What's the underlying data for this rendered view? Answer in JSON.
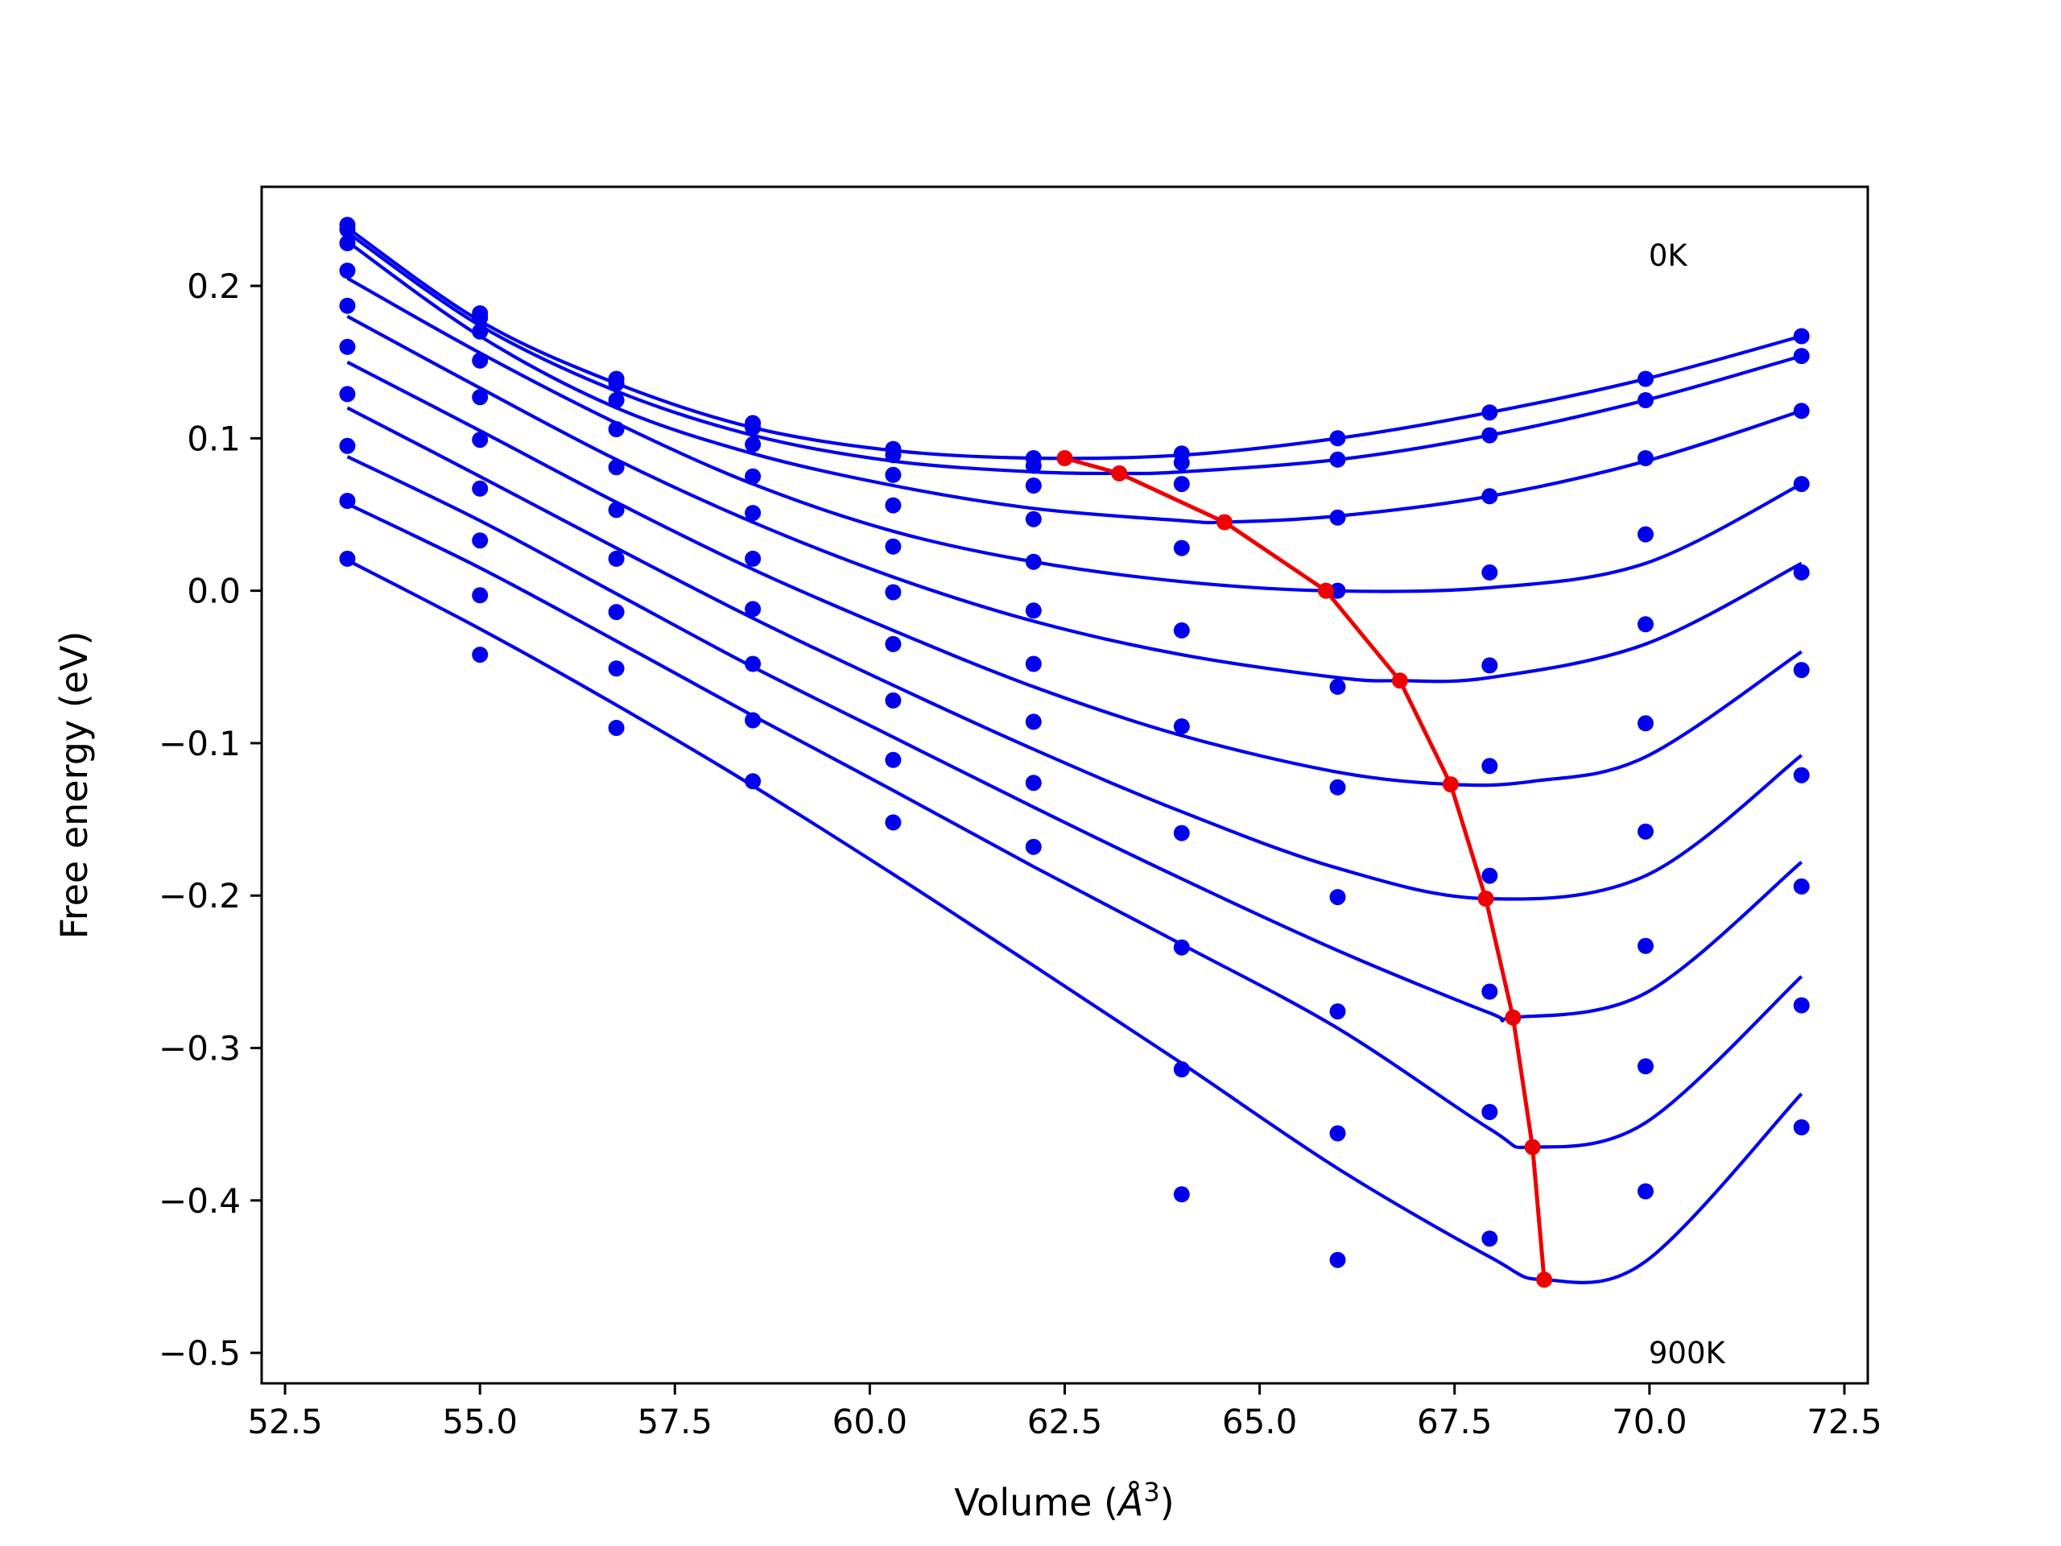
{
  "chart_data": {
    "type": "scatter",
    "xlabel": "Volume (",
    "xlabel_sym": "Å",
    "xlabel_sup": "3",
    "xlabel_end": ")",
    "ylabel": "Free energy (eV)",
    "xlim": [
      52.2,
      72.8
    ],
    "ylim": [
      -0.52,
      0.265
    ],
    "xticks": [
      52.5,
      55.0,
      57.5,
      60.0,
      62.5,
      65.0,
      67.5,
      70.0,
      72.5
    ],
    "xtick_labels": [
      "52.5",
      "55.0",
      "57.5",
      "60.0",
      "62.5",
      "65.0",
      "67.5",
      "70.0",
      "72.5"
    ],
    "yticks": [
      0.2,
      0.1,
      0.0,
      -0.1,
      -0.2,
      -0.3,
      -0.4,
      -0.5
    ],
    "ytick_labels": [
      "0.2",
      "0.1",
      "0.0",
      "−0.1",
      "−0.2",
      "−0.3",
      "−0.4",
      "−0.5"
    ],
    "grid": false,
    "annotations": [
      {
        "text": "0K",
        "x": 69.99,
        "y": 0.22
      },
      {
        "text": "900K",
        "x": 69.99,
        "y": -0.5
      }
    ],
    "colors": {
      "curves": "#0000ee",
      "minima": "#ee0000"
    },
    "volumes": [
      53.3,
      55.0,
      56.75,
      58.5,
      60.3,
      62.1,
      64.0,
      66.0,
      67.95,
      69.95,
      71.95
    ],
    "points": [
      [
        0.24,
        0.182,
        0.139,
        0.11,
        0.093,
        0.087,
        0.09,
        0.1,
        0.117,
        0.139,
        0.167
      ],
      [
        0.237,
        0.179,
        0.136,
        0.107,
        0.089,
        0.082,
        0.084,
        0.086,
        0.102,
        0.125,
        0.154
      ],
      [
        0.228,
        0.17,
        0.125,
        0.096,
        0.076,
        0.069,
        0.07,
        0.048,
        0.062,
        0.087,
        0.118
      ],
      [
        0.21,
        0.151,
        0.106,
        0.075,
        0.056,
        0.047,
        0.028,
        0.0,
        0.012,
        0.037,
        0.07
      ],
      [
        0.187,
        0.127,
        0.081,
        0.051,
        0.029,
        0.019,
        -0.026,
        -0.063,
        -0.049,
        -0.022,
        0.012
      ],
      [
        0.16,
        0.099,
        0.053,
        0.021,
        -0.001,
        -0.013,
        -0.089,
        -0.129,
        -0.115,
        -0.087,
        -0.052
      ],
      [
        0.129,
        0.067,
        0.021,
        -0.012,
        -0.035,
        -0.048,
        -0.159,
        -0.201,
        -0.187,
        -0.158,
        -0.121
      ],
      [
        0.095,
        0.033,
        -0.014,
        -0.048,
        -0.072,
        -0.086,
        -0.234,
        -0.276,
        -0.263,
        -0.233,
        -0.194
      ],
      [
        0.059,
        -0.003,
        -0.051,
        -0.085,
        -0.111,
        -0.126,
        -0.314,
        -0.356,
        -0.342,
        -0.312,
        -0.272
      ],
      [
        0.021,
        -0.042,
        -0.09,
        -0.125,
        -0.152,
        -0.168,
        -0.396,
        -0.439,
        -0.425,
        -0.394,
        -0.352
      ]
    ],
    "fits": [
      [
        [
          53.3,
          0.238
        ],
        [
          55.0,
          0.177
        ],
        [
          56.75,
          0.136
        ],
        [
          58.5,
          0.107
        ],
        [
          60.3,
          0.092
        ],
        [
          62.1,
          0.087
        ],
        [
          64.0,
          0.089
        ],
        [
          66.0,
          0.1
        ],
        [
          67.95,
          0.117
        ],
        [
          69.95,
          0.139
        ],
        [
          71.95,
          0.167
        ]
      ],
      [
        [
          53.3,
          0.235
        ],
        [
          55.0,
          0.174
        ],
        [
          56.75,
          0.131
        ],
        [
          58.5,
          0.102
        ],
        [
          60.3,
          0.085
        ],
        [
          62.1,
          0.078
        ],
        [
          63.2,
          0.077
        ],
        [
          64.0,
          0.078
        ],
        [
          66.0,
          0.086
        ],
        [
          67.95,
          0.102
        ],
        [
          69.95,
          0.125
        ],
        [
          71.95,
          0.154
        ]
      ],
      [
        [
          53.3,
          0.229
        ],
        [
          55.0,
          0.167
        ],
        [
          56.75,
          0.12
        ],
        [
          58.5,
          0.09
        ],
        [
          60.3,
          0.069
        ],
        [
          62.1,
          0.054
        ],
        [
          64.0,
          0.046
        ],
        [
          64.55,
          0.045
        ],
        [
          66.0,
          0.049
        ],
        [
          67.95,
          0.062
        ],
        [
          69.95,
          0.085
        ],
        [
          71.95,
          0.118
        ]
      ],
      [
        [
          53.3,
          0.205
        ],
        [
          55.0,
          0.156
        ],
        [
          56.75,
          0.11
        ],
        [
          58.5,
          0.07
        ],
        [
          60.3,
          0.039
        ],
        [
          62.1,
          0.019
        ],
        [
          64.0,
          0.006
        ],
        [
          65.85,
          0.0
        ],
        [
          67.95,
          0.002
        ],
        [
          69.95,
          0.018
        ],
        [
          71.95,
          0.07
        ]
      ],
      [
        [
          53.3,
          0.18
        ],
        [
          55.0,
          0.133
        ],
        [
          56.75,
          0.086
        ],
        [
          58.5,
          0.045
        ],
        [
          60.3,
          0.009
        ],
        [
          62.1,
          -0.02
        ],
        [
          64.0,
          -0.042
        ],
        [
          66.0,
          -0.057
        ],
        [
          66.8,
          -0.059
        ],
        [
          67.95,
          -0.057
        ],
        [
          69.95,
          -0.035
        ],
        [
          71.95,
          0.018
        ]
      ],
      [
        [
          53.3,
          0.15
        ],
        [
          55.0,
          0.105
        ],
        [
          56.75,
          0.058
        ],
        [
          58.5,
          0.014
        ],
        [
          60.3,
          -0.026
        ],
        [
          62.1,
          -0.063
        ],
        [
          64.0,
          -0.095
        ],
        [
          66.0,
          -0.119
        ],
        [
          67.45,
          -0.127
        ],
        [
          68.5,
          -0.125
        ],
        [
          69.95,
          -0.109
        ],
        [
          71.95,
          -0.04
        ]
      ],
      [
        [
          53.3,
          0.12
        ],
        [
          55.0,
          0.075
        ],
        [
          56.75,
          0.028
        ],
        [
          58.5,
          -0.018
        ],
        [
          60.3,
          -0.062
        ],
        [
          62.1,
          -0.104
        ],
        [
          64.0,
          -0.145
        ],
        [
          66.0,
          -0.182
        ],
        [
          67.9,
          -0.202
        ],
        [
          69.95,
          -0.187
        ],
        [
          71.95,
          -0.108
        ]
      ],
      [
        [
          53.3,
          0.088
        ],
        [
          55.0,
          0.046
        ],
        [
          56.75,
          -0.002
        ],
        [
          58.5,
          -0.05
        ],
        [
          60.3,
          -0.096
        ],
        [
          62.1,
          -0.142
        ],
        [
          64.0,
          -0.189
        ],
        [
          66.0,
          -0.236
        ],
        [
          67.95,
          -0.277
        ],
        [
          68.25,
          -0.28
        ],
        [
          69.95,
          -0.264
        ],
        [
          71.95,
          -0.178
        ]
      ],
      [
        [
          53.3,
          0.057
        ],
        [
          55.0,
          0.015
        ],
        [
          56.75,
          -0.033
        ],
        [
          58.5,
          -0.082
        ],
        [
          60.3,
          -0.131
        ],
        [
          62.1,
          -0.181
        ],
        [
          64.0,
          -0.232
        ],
        [
          66.0,
          -0.287
        ],
        [
          67.95,
          -0.353
        ],
        [
          68.5,
          -0.365
        ],
        [
          69.95,
          -0.349
        ],
        [
          71.95,
          -0.253
        ]
      ],
      [
        [
          53.3,
          0.02
        ],
        [
          55.0,
          -0.025
        ],
        [
          56.75,
          -0.075
        ],
        [
          58.5,
          -0.128
        ],
        [
          60.3,
          -0.186
        ],
        [
          62.1,
          -0.246
        ],
        [
          64.0,
          -0.31
        ],
        [
          66.0,
          -0.379
        ],
        [
          67.95,
          -0.437
        ],
        [
          68.65,
          -0.452
        ],
        [
          69.95,
          -0.44
        ],
        [
          71.95,
          -0.33
        ]
      ]
    ],
    "minima": [
      [
        62.5,
        0.087
      ],
      [
        63.2,
        0.077
      ],
      [
        64.55,
        0.045
      ],
      [
        65.85,
        0.0
      ],
      [
        66.8,
        -0.059
      ],
      [
        67.45,
        -0.127
      ],
      [
        67.9,
        -0.202
      ],
      [
        68.25,
        -0.28
      ],
      [
        68.5,
        -0.365
      ],
      [
        68.65,
        -0.452
      ]
    ]
  }
}
